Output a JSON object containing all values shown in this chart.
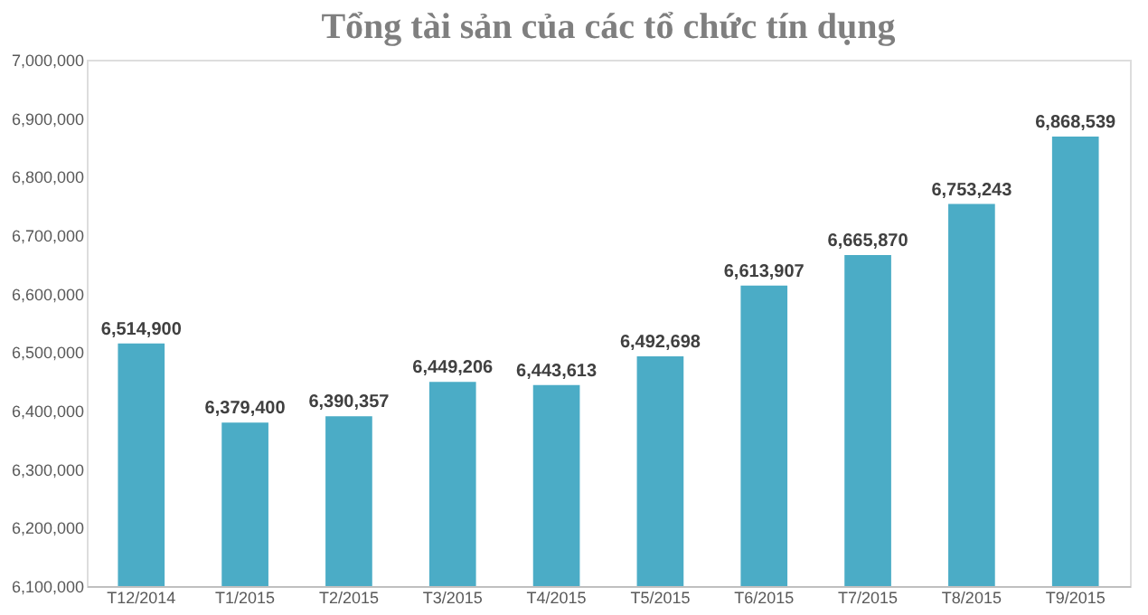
{
  "chart_data": {
    "type": "bar",
    "title": "Tổng tài sản của các tổ chức tín dụng",
    "categories": [
      "T12/2014",
      "T1/2015",
      "T2/2015",
      "T3/2015",
      "T4/2015",
      "T5/2015",
      "T6/2015",
      "T7/2015",
      "T8/2015",
      "T9/2015"
    ],
    "values": [
      6514900,
      6379400,
      6390357,
      6449206,
      6443613,
      6492698,
      6613907,
      6665870,
      6753243,
      6868539
    ],
    "value_labels": [
      "6,514,900",
      "6,379,400",
      "6,390,357",
      "6,449,206",
      "6,443,613",
      "6,492,698",
      "6,613,907",
      "6,665,870",
      "6,753,243",
      "6,868,539"
    ],
    "color": "#4bacc6",
    "ylim": [
      6100000,
      7000000
    ],
    "yticks": [
      {
        "value": 6100000,
        "label": "6,100,000"
      },
      {
        "value": 6200000,
        "label": "6,200,000"
      },
      {
        "value": 6300000,
        "label": "6,300,000"
      },
      {
        "value": 6400000,
        "label": "6,400,000"
      },
      {
        "value": 6500000,
        "label": "6,500,000"
      },
      {
        "value": 6600000,
        "label": "6,600,000"
      },
      {
        "value": 6700000,
        "label": "6,700,000"
      },
      {
        "value": 6800000,
        "label": "6,800,000"
      },
      {
        "value": 6900000,
        "label": "6,900,000"
      },
      {
        "value": 7000000,
        "label": "7,000,000"
      }
    ],
    "grid": false
  }
}
